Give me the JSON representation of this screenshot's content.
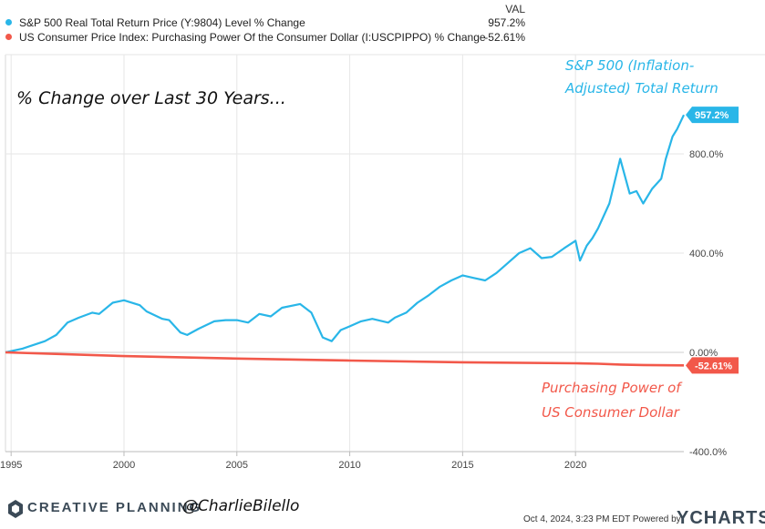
{
  "legend": {
    "value_header": "VAL",
    "items": [
      {
        "label": "S&P 500 Real Total Return Price (Y:9804) Level % Change",
        "value": "957.2%",
        "color": "#29b6e8"
      },
      {
        "label": "US Consumer Price Index: Purchasing Power Of the Consumer Dollar (I:USCPIPPO) % Change",
        "value": "-52.61%",
        "color": "#f2584a"
      }
    ]
  },
  "annotations": {
    "main": "% Change over Last 30 Years...",
    "sp500_line1": "S&P 500 (Inflation-",
    "sp500_line2": "Adjusted) Total Return",
    "dollar_line1": "Purchasing Power of",
    "dollar_line2": "US Consumer Dollar"
  },
  "footer": {
    "brand": "CREATIVE PLANNING",
    "handle": "@CharlieBilello",
    "timestamp": "Oct 4, 2024, 3:23 PM EDT Powered by",
    "ycharts": "YCHARTS"
  },
  "chart_data": {
    "type": "line",
    "xlim": [
      1994.75,
      2024.8
    ],
    "ylim": [
      -400,
      1200
    ],
    "x_ticks": [
      1995,
      2000,
      2005,
      2010,
      2015,
      2020
    ],
    "x_tick_labels": [
      "1995",
      "2000",
      "2005",
      "2010",
      "2015",
      "2020"
    ],
    "y_ticks": [
      800,
      400,
      0,
      -400
    ],
    "y_tick_labels": [
      "800.0%",
      "400.0%",
      "0.00%",
      "-400.0%"
    ],
    "grid": true,
    "series": [
      {
        "name": "S&P 500 Real Total Return Price (Y:9804) Level % Change",
        "color": "#29b6e8",
        "end_label": "957.2%",
        "x": [
          1994.75,
          1995.5,
          1996.0,
          1996.5,
          1997.0,
          1997.5,
          1998.0,
          1998.6,
          1998.9,
          1999.5,
          2000.0,
          2000.7,
          2001.0,
          2001.7,
          2002.0,
          2002.5,
          2002.8,
          2003.3,
          2004.0,
          2004.5,
          2005.0,
          2005.5,
          2006.0,
          2006.5,
          2007.0,
          2007.8,
          2008.3,
          2008.8,
          2009.2,
          2009.6,
          2010.0,
          2010.5,
          2011.0,
          2011.7,
          2012.0,
          2012.5,
          2013.0,
          2013.5,
          2014.0,
          2014.5,
          2015.0,
          2015.5,
          2016.0,
          2016.5,
          2017.0,
          2017.5,
          2018.0,
          2018.5,
          2018.95,
          2019.5,
          2020.0,
          2020.2,
          2020.5,
          2020.75,
          2021.0,
          2021.5,
          2021.98,
          2022.4,
          2022.7,
          2023.0,
          2023.4,
          2023.8,
          2024.0,
          2024.3,
          2024.5,
          2024.8
        ],
        "y": [
          0,
          15,
          30,
          45,
          70,
          120,
          140,
          160,
          155,
          200,
          210,
          190,
          165,
          135,
          130,
          80,
          70,
          95,
          125,
          130,
          130,
          120,
          155,
          145,
          180,
          195,
          160,
          60,
          45,
          90,
          105,
          125,
          135,
          120,
          140,
          160,
          200,
          230,
          265,
          290,
          310,
          300,
          290,
          320,
          360,
          400,
          420,
          380,
          385,
          420,
          450,
          370,
          430,
          460,
          500,
          600,
          780,
          640,
          650,
          600,
          660,
          700,
          780,
          870,
          900,
          957.2
        ]
      },
      {
        "name": "US Consumer Price Index: Purchasing Power Of the Consumer Dollar (I:USCPIPPO) % Change",
        "color": "#f2584a",
        "end_label": "-52.61%",
        "x": [
          1994.75,
          2000.0,
          2005.0,
          2010.0,
          2015.0,
          2020.0,
          2021.0,
          2022.0,
          2023.0,
          2024.8
        ],
        "y": [
          0,
          -15,
          -25,
          -33,
          -40,
          -44,
          -46,
          -49,
          -51,
          -52.61
        ]
      }
    ]
  }
}
